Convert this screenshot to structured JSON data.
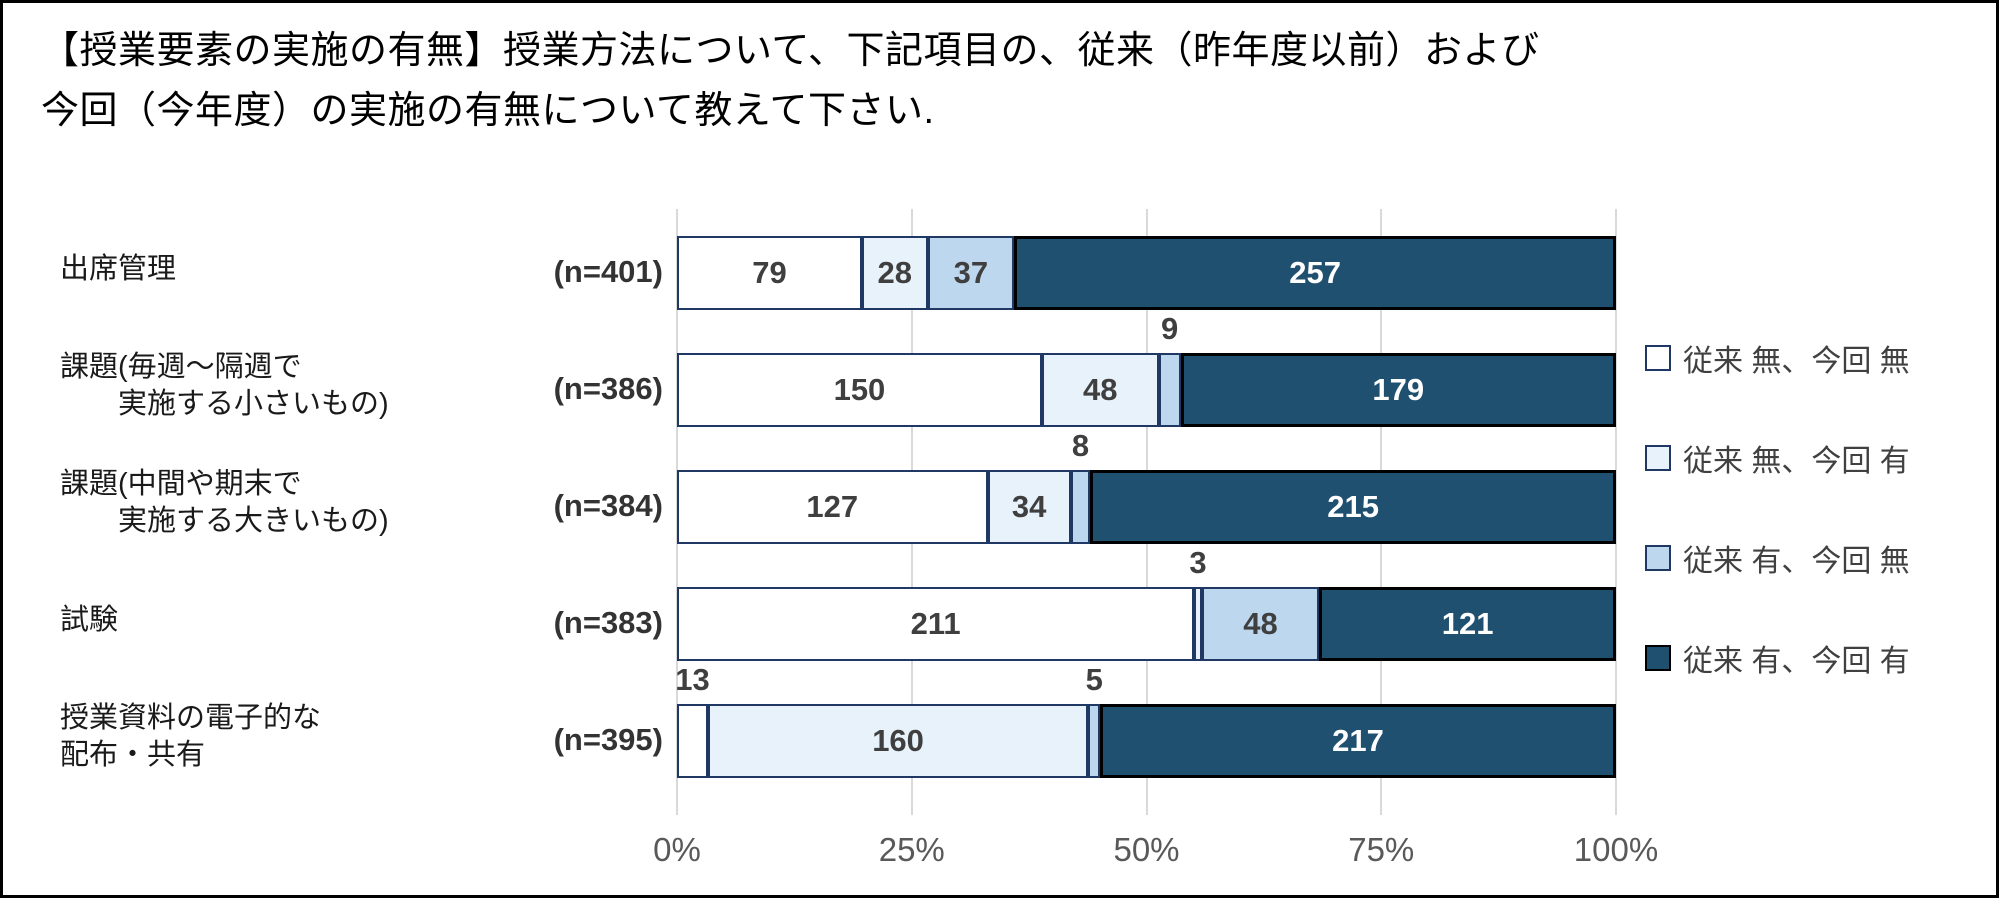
{
  "title": {
    "lines": [
      "【授業要素の実施の有無】授業方法について、下記項目の、従来（昨年度以前）および",
      "今回（今年度）の実施の有無について教えて下さい."
    ]
  },
  "chart_data": {
    "type": "bar",
    "orientation": "horizontal",
    "stacked": true,
    "normalized_to_100pct": true,
    "categories": [
      {
        "label_lines": [
          "出席管理"
        ],
        "indent_second_line": false,
        "n_label": "(n=401)",
        "n": 401
      },
      {
        "label_lines": [
          "課題(毎週～隔週で",
          "実施する小さいもの)"
        ],
        "indent_second_line": true,
        "n_label": "(n=386)",
        "n": 386
      },
      {
        "label_lines": [
          "課題(中間や期末で",
          "実施する大きいもの)"
        ],
        "indent_second_line": true,
        "n_label": "(n=384)",
        "n": 384
      },
      {
        "label_lines": [
          "試験"
        ],
        "indent_second_line": false,
        "n_label": "(n=383)",
        "n": 383
      },
      {
        "label_lines": [
          "授業資料の電子的な",
          "配布・共有"
        ],
        "indent_second_line": false,
        "n_label": "(n=395)",
        "n": 395
      }
    ],
    "series": [
      {
        "name": "従来 無、今回 無",
        "fill": "#FFFFFF",
        "border": "#1F3864",
        "label_color": "#3F3F3F",
        "values": [
          79,
          150,
          127,
          211,
          13
        ]
      },
      {
        "name": "従来 無、今回 有",
        "fill": "#E8F2FB",
        "border": "#1F3864",
        "label_color": "#3F3F3F",
        "values": [
          28,
          48,
          34,
          3,
          160
        ]
      },
      {
        "name": "従来 有、今回 無",
        "fill": "#BDD7EE",
        "border": "#1F3864",
        "label_color": "#3F3F3F",
        "values": [
          37,
          9,
          8,
          48,
          5
        ]
      },
      {
        "name": "従来 有、今回 有",
        "fill": "#20506F",
        "border": "#000000",
        "label_color": "#FFFFFF",
        "values": [
          257,
          179,
          215,
          121,
          217
        ]
      }
    ],
    "x_axis": {
      "ticks": [
        "0%",
        "25%",
        "50%",
        "75%",
        "100%"
      ],
      "range_fraction": [
        0,
        1
      ],
      "tick_label_color": "#595959"
    },
    "gridlines": {
      "visible": true,
      "color": "#D9D9D9"
    },
    "legend_position": "right",
    "outside_label_threshold_fraction": 0.04
  }
}
